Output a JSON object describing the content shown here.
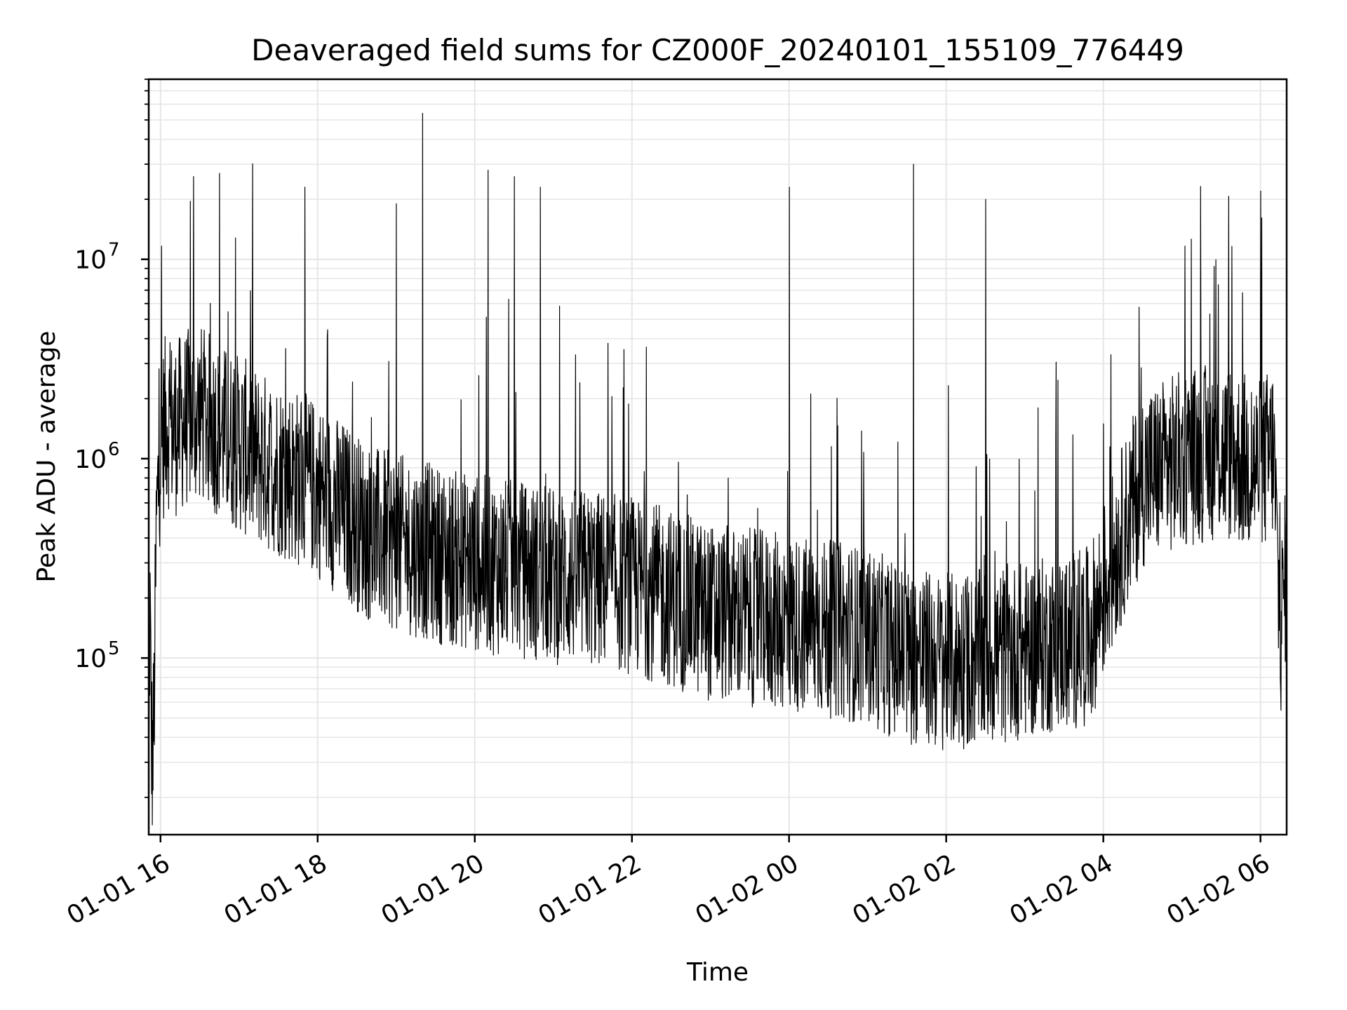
{
  "chart_data": {
    "type": "line",
    "title": "Deaveraged field sums for CZ000F_20240101_155109_776449",
    "xlabel": "Time",
    "ylabel": "Peak ADU - average",
    "yscale": "log",
    "x_range": [
      "2024-01-01 15:51",
      "2024-01-02 06:20"
    ],
    "ylim": [
      13000,
      80000000
    ],
    "x_ticks": [
      "01-01 16",
      "01-01 18",
      "01-01 20",
      "01-01 22",
      "01-02 00",
      "01-02 02",
      "01-02 04",
      "01-02 06"
    ],
    "y_ticks": [
      {
        "base": "10",
        "exp": "5",
        "value": 100000
      },
      {
        "base": "10",
        "exp": "6",
        "value": 1000000
      },
      {
        "base": "10",
        "exp": "7",
        "value": 10000000
      }
    ],
    "grid": true,
    "line_color": "#000000",
    "grid_color": "#e6e6e6",
    "series": [
      {
        "x": [
          "2024-01-01 15:51",
          "2024-01-01 15:52",
          "2024-01-01 15:53",
          "2024-01-01 15:54",
          "2024-01-01 15:55",
          "2024-01-01 15:57",
          "2024-01-01 16:00",
          "2024-01-01 16:05",
          "2024-01-01 16:10",
          "2024-01-01 16:20",
          "2024-01-01 16:30",
          "2024-01-01 16:40",
          "2024-01-01 16:50",
          "2024-01-01 17:00",
          "2024-01-01 17:15",
          "2024-01-01 17:30",
          "2024-01-01 17:45",
          "2024-01-01 18:00",
          "2024-01-01 18:20",
          "2024-01-01 18:40",
          "2024-01-01 19:00",
          "2024-01-01 19:20",
          "2024-01-01 19:40",
          "2024-01-01 20:00",
          "2024-01-01 20:30",
          "2024-01-01 21:00",
          "2024-01-01 21:30",
          "2024-01-01 22:00",
          "2024-01-01 22:30",
          "2024-01-01 23:00",
          "2024-01-01 23:30",
          "2024-01-02 00:00",
          "2024-01-02 00:30",
          "2024-01-02 01:00",
          "2024-01-02 01:20",
          "2024-01-02 01:40",
          "2024-01-02 02:00",
          "2024-01-02 02:30",
          "2024-01-02 03:00",
          "2024-01-02 03:30",
          "2024-01-02 03:50",
          "2024-01-02 04:10",
          "2024-01-02 04:30",
          "2024-01-02 05:00",
          "2024-01-02 05:30",
          "2024-01-02 06:00",
          "2024-01-02 06:10",
          "2024-01-02 06:15",
          "2024-01-02 06:20"
        ],
        "y": [
          18000,
          200000,
          40000,
          30000,
          50000,
          500000,
          1200000,
          1600000,
          1400000,
          1600000,
          1700000,
          1500000,
          1300000,
          1200000,
          1000000,
          900000,
          800000,
          700000,
          550000,
          420000,
          380000,
          350000,
          320000,
          300000,
          280000,
          260000,
          250000,
          230000,
          200000,
          170000,
          160000,
          150000,
          140000,
          130000,
          110000,
          100000,
          95000,
          100000,
          110000,
          120000,
          130000,
          350000,
          800000,
          1000000,
          1100000,
          900000,
          1100000,
          130000,
          300000
        ],
        "spikes": [
          {
            "x": "2024-01-01 16:25",
            "y": 26000000
          },
          {
            "x": "2024-01-01 16:45",
            "y": 27000000
          },
          {
            "x": "2024-01-01 17:50",
            "y": 23000000
          },
          {
            "x": "2024-01-01 19:00",
            "y": 19000000
          },
          {
            "x": "2024-01-01 19:20",
            "y": 54000000
          },
          {
            "x": "2024-01-01 20:10",
            "y": 28000000
          },
          {
            "x": "2024-01-01 20:30",
            "y": 26000000
          },
          {
            "x": "2024-01-01 20:50",
            "y": 23000000
          },
          {
            "x": "2024-01-02 00:00",
            "y": 23000000
          },
          {
            "x": "2024-01-02 01:35",
            "y": 30000000
          },
          {
            "x": "2024-01-02 02:30",
            "y": 20000000
          },
          {
            "x": "2024-01-02 06:00",
            "y": 22000000
          }
        ]
      }
    ]
  }
}
